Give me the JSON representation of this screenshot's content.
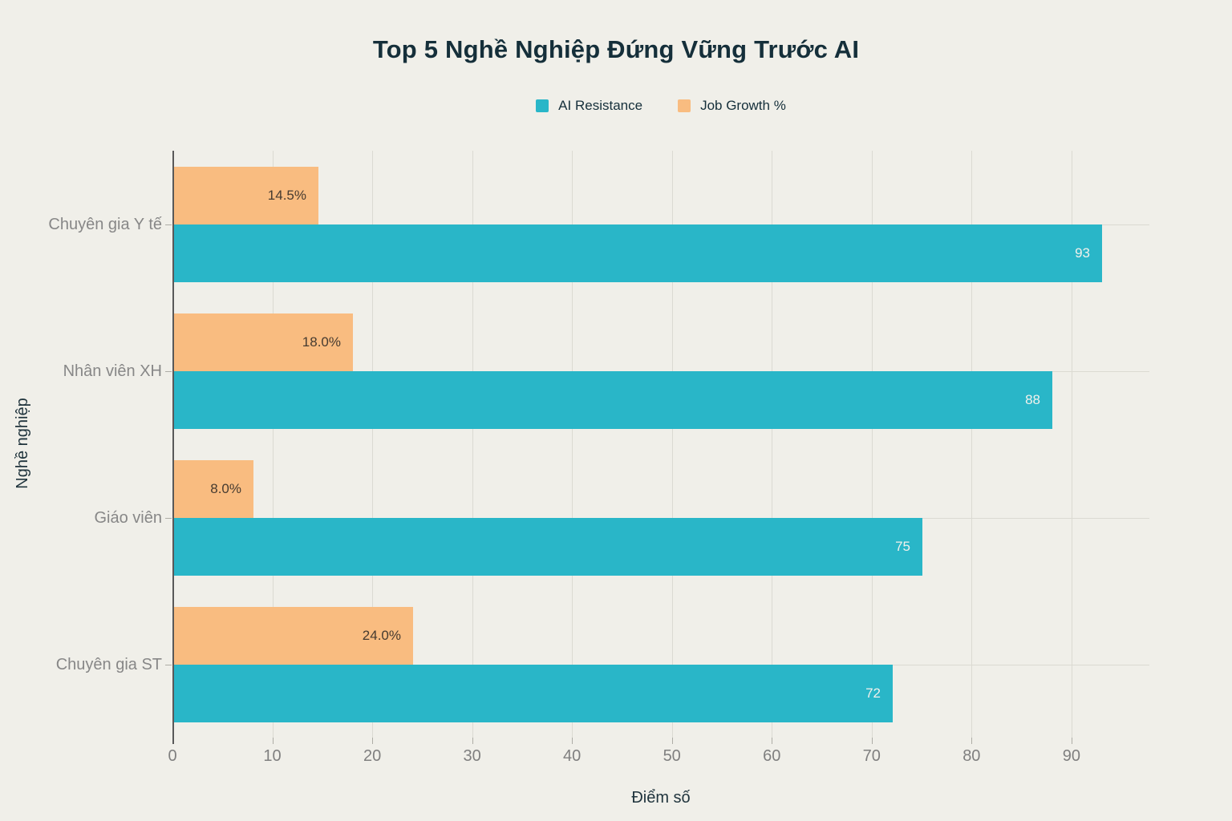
{
  "title": "Top 5 Nghề Nghiệp Đứng Vững Trước AI",
  "colors": {
    "background": "#f0efe9",
    "title_text": "#152f3a",
    "axis_title_text": "#20343d",
    "tick_label_text": "#7f7f7f",
    "category_label_text": "#878787",
    "gridline": "#dbdad2",
    "axis_line": "#595959",
    "tick_mark": "#aeada6"
  },
  "legend": {
    "items": [
      {
        "label": "AI Resistance",
        "color": "#29b6c8"
      },
      {
        "label": "Job Growth %",
        "color": "#f9bc80"
      }
    ]
  },
  "chart_data": {
    "type": "bar",
    "orientation": "horizontal",
    "title": "Top 5 Nghề Nghiệp Đứng Vững Trước AI",
    "xlabel": "Điểm số",
    "ylabel": "Nghề nghiệp",
    "categories": [
      "Chuyên gia Y tế",
      "Nhân viên XH",
      "Giáo viên",
      "Chuyên gia ST"
    ],
    "series": [
      {
        "name": "Job Growth %",
        "color": "#f9bc80",
        "values": [
          14.5,
          18.0,
          8.0,
          24.0
        ],
        "data_labels": [
          "14.5%",
          "18.0%",
          "8.0%",
          "24.0%"
        ],
        "label_color": "#463b30",
        "position_in_group": "top"
      },
      {
        "name": "AI Resistance",
        "color": "#29b6c8",
        "values": [
          93,
          88,
          75,
          72
        ],
        "data_labels": [
          "93",
          "88",
          "75",
          "72"
        ],
        "label_color": "#f2f1ec",
        "position_in_group": "bottom"
      }
    ],
    "xlim": [
      0,
      97.8
    ],
    "xticks": [
      0,
      10,
      20,
      30,
      40,
      50,
      60,
      70,
      80,
      90
    ],
    "grid": true,
    "legend_position": "top-center",
    "data_label_position": "inside-end"
  }
}
